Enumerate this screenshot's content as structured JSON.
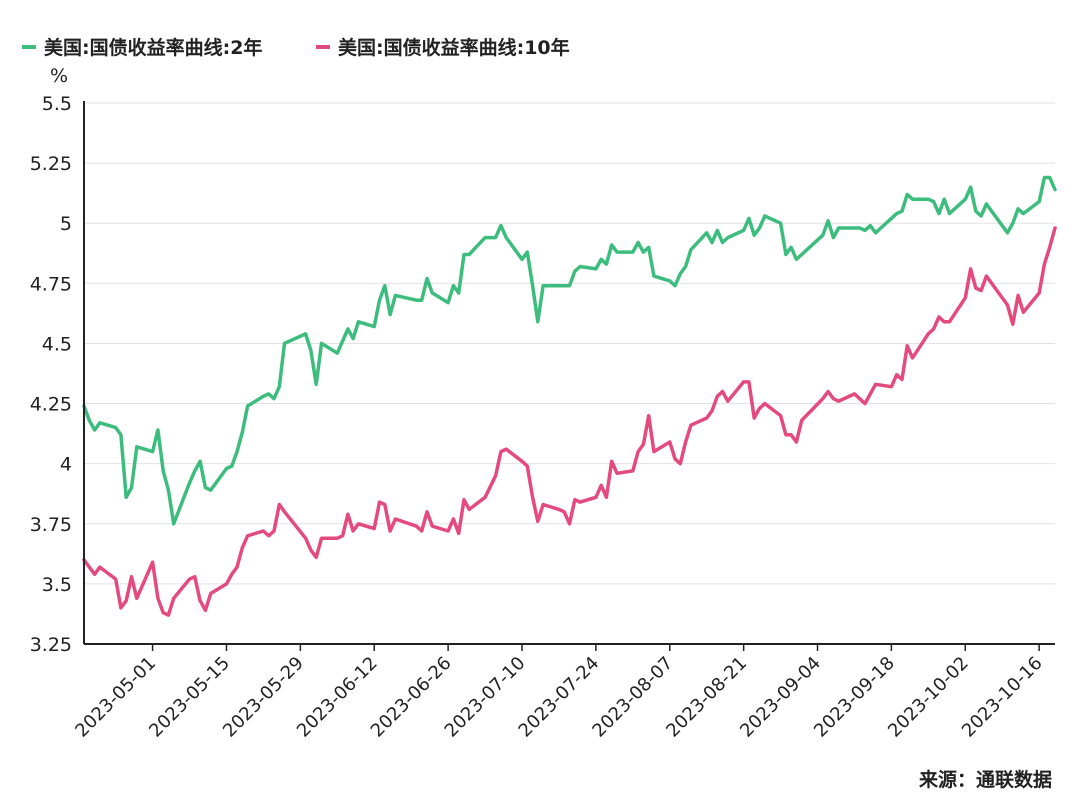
{
  "chart_data": {
    "type": "line",
    "ylabel": "%",
    "ylim": [
      3.25,
      5.5
    ],
    "yticks": [
      3.25,
      3.5,
      3.75,
      4,
      4.25,
      4.5,
      4.75,
      5,
      5.25,
      5.5
    ],
    "ytick_labels": [
      "3.25",
      "3.5",
      "3.75",
      "4",
      "4.25",
      "4.5",
      "4.75",
      "5",
      "5.25",
      "5.5"
    ],
    "xlim": [
      "2023-04-18",
      "2023-10-19"
    ],
    "xtick_labels": [
      "2023-05-01",
      "2023-05-15",
      "2023-05-29",
      "2023-06-12",
      "2023-06-26",
      "2023-07-10",
      "2023-07-24",
      "2023-08-07",
      "2023-08-21",
      "2023-09-04",
      "2023-09-18",
      "2023-10-02",
      "2023-10-16"
    ],
    "grid": "horizontal",
    "legend_position": "top-left",
    "source": "来源：通联数据",
    "series": [
      {
        "name": "美国:国债收益率曲线:2年",
        "color": "#3dbd7d",
        "points": [
          [
            "2023-04-18",
            4.24
          ],
          [
            "2023-04-19",
            4.18
          ],
          [
            "2023-04-20",
            4.14
          ],
          [
            "2023-04-21",
            4.17
          ],
          [
            "2023-04-24",
            4.15
          ],
          [
            "2023-04-25",
            4.12
          ],
          [
            "2023-04-26",
            3.86
          ],
          [
            "2023-04-27",
            3.9
          ],
          [
            "2023-04-28",
            4.07
          ],
          [
            "2023-05-01",
            4.05
          ],
          [
            "2023-05-02",
            4.14
          ],
          [
            "2023-05-03",
            3.97
          ],
          [
            "2023-05-04",
            3.89
          ],
          [
            "2023-05-05",
            3.75
          ],
          [
            "2023-05-08",
            3.92
          ],
          [
            "2023-05-09",
            3.97
          ],
          [
            "2023-05-10",
            4.01
          ],
          [
            "2023-05-11",
            3.9
          ],
          [
            "2023-05-12",
            3.89
          ],
          [
            "2023-05-15",
            3.98
          ],
          [
            "2023-05-16",
            3.99
          ],
          [
            "2023-05-17",
            4.05
          ],
          [
            "2023-05-18",
            4.13
          ],
          [
            "2023-05-19",
            4.24
          ],
          [
            "2023-05-22",
            4.28
          ],
          [
            "2023-05-23",
            4.29
          ],
          [
            "2023-05-24",
            4.27
          ],
          [
            "2023-05-25",
            4.32
          ],
          [
            "2023-05-26",
            4.5
          ],
          [
            "2023-05-30",
            4.54
          ],
          [
            "2023-05-31",
            4.47
          ],
          [
            "2023-06-01",
            4.33
          ],
          [
            "2023-06-02",
            4.5
          ],
          [
            "2023-06-05",
            4.46
          ],
          [
            "2023-06-06",
            4.51
          ],
          [
            "2023-06-07",
            4.56
          ],
          [
            "2023-06-08",
            4.52
          ],
          [
            "2023-06-09",
            4.59
          ],
          [
            "2023-06-12",
            4.57
          ],
          [
            "2023-06-13",
            4.68
          ],
          [
            "2023-06-14",
            4.74
          ],
          [
            "2023-06-15",
            4.62
          ],
          [
            "2023-06-16",
            4.7
          ],
          [
            "2023-06-20",
            4.68
          ],
          [
            "2023-06-21",
            4.68
          ],
          [
            "2023-06-22",
            4.77
          ],
          [
            "2023-06-23",
            4.71
          ],
          [
            "2023-06-26",
            4.67
          ],
          [
            "2023-06-27",
            4.74
          ],
          [
            "2023-06-28",
            4.71
          ],
          [
            "2023-06-29",
            4.87
          ],
          [
            "2023-06-30",
            4.87
          ],
          [
            "2023-07-03",
            4.94
          ],
          [
            "2023-07-05",
            4.94
          ],
          [
            "2023-07-06",
            4.99
          ],
          [
            "2023-07-07",
            4.94
          ],
          [
            "2023-07-10",
            4.85
          ],
          [
            "2023-07-11",
            4.88
          ],
          [
            "2023-07-12",
            4.74
          ],
          [
            "2023-07-13",
            4.59
          ],
          [
            "2023-07-14",
            4.74
          ],
          [
            "2023-07-17",
            4.74
          ],
          [
            "2023-07-18",
            4.74
          ],
          [
            "2023-07-19",
            4.74
          ],
          [
            "2023-07-20",
            4.8
          ],
          [
            "2023-07-21",
            4.82
          ],
          [
            "2023-07-24",
            4.81
          ],
          [
            "2023-07-25",
            4.85
          ],
          [
            "2023-07-26",
            4.83
          ],
          [
            "2023-07-27",
            4.91
          ],
          [
            "2023-07-28",
            4.88
          ],
          [
            "2023-07-31",
            4.88
          ],
          [
            "2023-08-01",
            4.92
          ],
          [
            "2023-08-02",
            4.88
          ],
          [
            "2023-08-03",
            4.9
          ],
          [
            "2023-08-04",
            4.78
          ],
          [
            "2023-08-07",
            4.76
          ],
          [
            "2023-08-08",
            4.74
          ],
          [
            "2023-08-09",
            4.79
          ],
          [
            "2023-08-10",
            4.82
          ],
          [
            "2023-08-11",
            4.89
          ],
          [
            "2023-08-14",
            4.96
          ],
          [
            "2023-08-15",
            4.92
          ],
          [
            "2023-08-16",
            4.97
          ],
          [
            "2023-08-17",
            4.92
          ],
          [
            "2023-08-18",
            4.94
          ],
          [
            "2023-08-21",
            4.97
          ],
          [
            "2023-08-22",
            5.02
          ],
          [
            "2023-08-23",
            4.95
          ],
          [
            "2023-08-24",
            4.98
          ],
          [
            "2023-08-25",
            5.03
          ],
          [
            "2023-08-28",
            5.0
          ],
          [
            "2023-08-29",
            4.87
          ],
          [
            "2023-08-30",
            4.9
          ],
          [
            "2023-08-31",
            4.85
          ],
          [
            "2023-09-01",
            4.87
          ],
          [
            "2023-09-05",
            4.95
          ],
          [
            "2023-09-06",
            5.01
          ],
          [
            "2023-09-07",
            4.94
          ],
          [
            "2023-09-08",
            4.98
          ],
          [
            "2023-09-11",
            4.98
          ],
          [
            "2023-09-12",
            4.98
          ],
          [
            "2023-09-13",
            4.97
          ],
          [
            "2023-09-14",
            4.99
          ],
          [
            "2023-09-15",
            4.96
          ],
          [
            "2023-09-18",
            5.02
          ],
          [
            "2023-09-19",
            5.04
          ],
          [
            "2023-09-20",
            5.05
          ],
          [
            "2023-09-21",
            5.12
          ],
          [
            "2023-09-22",
            5.1
          ],
          [
            "2023-09-25",
            5.1
          ],
          [
            "2023-09-26",
            5.09
          ],
          [
            "2023-09-27",
            5.04
          ],
          [
            "2023-09-28",
            5.1
          ],
          [
            "2023-09-29",
            5.04
          ],
          [
            "2023-10-02",
            5.1
          ],
          [
            "2023-10-03",
            5.15
          ],
          [
            "2023-10-04",
            5.05
          ],
          [
            "2023-10-05",
            5.03
          ],
          [
            "2023-10-06",
            5.08
          ],
          [
            "2023-10-10",
            4.96
          ],
          [
            "2023-10-11",
            5.0
          ],
          [
            "2023-10-12",
            5.06
          ],
          [
            "2023-10-13",
            5.04
          ],
          [
            "2023-10-16",
            5.09
          ],
          [
            "2023-10-17",
            5.19
          ],
          [
            "2023-10-18",
            5.19
          ],
          [
            "2023-10-19",
            5.14
          ]
        ]
      },
      {
        "name": "美国:国债收益率曲线:10年",
        "color": "#e54a7f",
        "points": [
          [
            "2023-04-18",
            3.6
          ],
          [
            "2023-04-19",
            3.57
          ],
          [
            "2023-04-20",
            3.54
          ],
          [
            "2023-04-21",
            3.57
          ],
          [
            "2023-04-24",
            3.52
          ],
          [
            "2023-04-25",
            3.4
          ],
          [
            "2023-04-26",
            3.43
          ],
          [
            "2023-04-27",
            3.53
          ],
          [
            "2023-04-28",
            3.44
          ],
          [
            "2023-05-01",
            3.59
          ],
          [
            "2023-05-02",
            3.44
          ],
          [
            "2023-05-03",
            3.38
          ],
          [
            "2023-05-04",
            3.37
          ],
          [
            "2023-05-05",
            3.44
          ],
          [
            "2023-05-08",
            3.52
          ],
          [
            "2023-05-09",
            3.53
          ],
          [
            "2023-05-10",
            3.43
          ],
          [
            "2023-05-11",
            3.39
          ],
          [
            "2023-05-12",
            3.46
          ],
          [
            "2023-05-15",
            3.5
          ],
          [
            "2023-05-16",
            3.54
          ],
          [
            "2023-05-17",
            3.57
          ],
          [
            "2023-05-18",
            3.65
          ],
          [
            "2023-05-19",
            3.7
          ],
          [
            "2023-05-22",
            3.72
          ],
          [
            "2023-05-23",
            3.7
          ],
          [
            "2023-05-24",
            3.72
          ],
          [
            "2023-05-25",
            3.83
          ],
          [
            "2023-05-26",
            3.8
          ],
          [
            "2023-05-30",
            3.69
          ],
          [
            "2023-05-31",
            3.64
          ],
          [
            "2023-06-01",
            3.61
          ],
          [
            "2023-06-02",
            3.69
          ],
          [
            "2023-06-05",
            3.69
          ],
          [
            "2023-06-06",
            3.7
          ],
          [
            "2023-06-07",
            3.79
          ],
          [
            "2023-06-08",
            3.72
          ],
          [
            "2023-06-09",
            3.75
          ],
          [
            "2023-06-12",
            3.73
          ],
          [
            "2023-06-13",
            3.84
          ],
          [
            "2023-06-14",
            3.83
          ],
          [
            "2023-06-15",
            3.72
          ],
          [
            "2023-06-16",
            3.77
          ],
          [
            "2023-06-20",
            3.74
          ],
          [
            "2023-06-21",
            3.72
          ],
          [
            "2023-06-22",
            3.8
          ],
          [
            "2023-06-23",
            3.74
          ],
          [
            "2023-06-26",
            3.72
          ],
          [
            "2023-06-27",
            3.77
          ],
          [
            "2023-06-28",
            3.71
          ],
          [
            "2023-06-29",
            3.85
          ],
          [
            "2023-06-30",
            3.81
          ],
          [
            "2023-07-03",
            3.86
          ],
          [
            "2023-07-05",
            3.95
          ],
          [
            "2023-07-06",
            4.05
          ],
          [
            "2023-07-07",
            4.06
          ],
          [
            "2023-07-10",
            4.01
          ],
          [
            "2023-07-11",
            3.99
          ],
          [
            "2023-07-12",
            3.86
          ],
          [
            "2023-07-13",
            3.76
          ],
          [
            "2023-07-14",
            3.83
          ],
          [
            "2023-07-17",
            3.81
          ],
          [
            "2023-07-18",
            3.8
          ],
          [
            "2023-07-19",
            3.75
          ],
          [
            "2023-07-20",
            3.85
          ],
          [
            "2023-07-21",
            3.84
          ],
          [
            "2023-07-24",
            3.86
          ],
          [
            "2023-07-25",
            3.91
          ],
          [
            "2023-07-26",
            3.86
          ],
          [
            "2023-07-27",
            4.01
          ],
          [
            "2023-07-28",
            3.96
          ],
          [
            "2023-07-31",
            3.97
          ],
          [
            "2023-08-01",
            4.05
          ],
          [
            "2023-08-02",
            4.08
          ],
          [
            "2023-08-03",
            4.2
          ],
          [
            "2023-08-04",
            4.05
          ],
          [
            "2023-08-07",
            4.09
          ],
          [
            "2023-08-08",
            4.02
          ],
          [
            "2023-08-09",
            4.0
          ],
          [
            "2023-08-10",
            4.09
          ],
          [
            "2023-08-11",
            4.16
          ],
          [
            "2023-08-14",
            4.19
          ],
          [
            "2023-08-15",
            4.22
          ],
          [
            "2023-08-16",
            4.28
          ],
          [
            "2023-08-17",
            4.3
          ],
          [
            "2023-08-18",
            4.26
          ],
          [
            "2023-08-21",
            4.34
          ],
          [
            "2023-08-22",
            4.34
          ],
          [
            "2023-08-23",
            4.19
          ],
          [
            "2023-08-24",
            4.23
          ],
          [
            "2023-08-25",
            4.25
          ],
          [
            "2023-08-28",
            4.2
          ],
          [
            "2023-08-29",
            4.12
          ],
          [
            "2023-08-30",
            4.12
          ],
          [
            "2023-08-31",
            4.09
          ],
          [
            "2023-09-01",
            4.18
          ],
          [
            "2023-09-05",
            4.27
          ],
          [
            "2023-09-06",
            4.3
          ],
          [
            "2023-09-07",
            4.27
          ],
          [
            "2023-09-08",
            4.26
          ],
          [
            "2023-09-11",
            4.29
          ],
          [
            "2023-09-12",
            4.27
          ],
          [
            "2023-09-13",
            4.25
          ],
          [
            "2023-09-14",
            4.29
          ],
          [
            "2023-09-15",
            4.33
          ],
          [
            "2023-09-18",
            4.32
          ],
          [
            "2023-09-19",
            4.37
          ],
          [
            "2023-09-20",
            4.35
          ],
          [
            "2023-09-21",
            4.49
          ],
          [
            "2023-09-22",
            4.44
          ],
          [
            "2023-09-25",
            4.54
          ],
          [
            "2023-09-26",
            4.56
          ],
          [
            "2023-09-27",
            4.61
          ],
          [
            "2023-09-28",
            4.59
          ],
          [
            "2023-09-29",
            4.59
          ],
          [
            "2023-10-02",
            4.69
          ],
          [
            "2023-10-03",
            4.81
          ],
          [
            "2023-10-04",
            4.73
          ],
          [
            "2023-10-05",
            4.72
          ],
          [
            "2023-10-06",
            4.78
          ],
          [
            "2023-10-10",
            4.66
          ],
          [
            "2023-10-11",
            4.58
          ],
          [
            "2023-10-12",
            4.7
          ],
          [
            "2023-10-13",
            4.63
          ],
          [
            "2023-10-16",
            4.71
          ],
          [
            "2023-10-17",
            4.83
          ],
          [
            "2023-10-18",
            4.9
          ],
          [
            "2023-10-19",
            4.98
          ]
        ]
      }
    ]
  }
}
